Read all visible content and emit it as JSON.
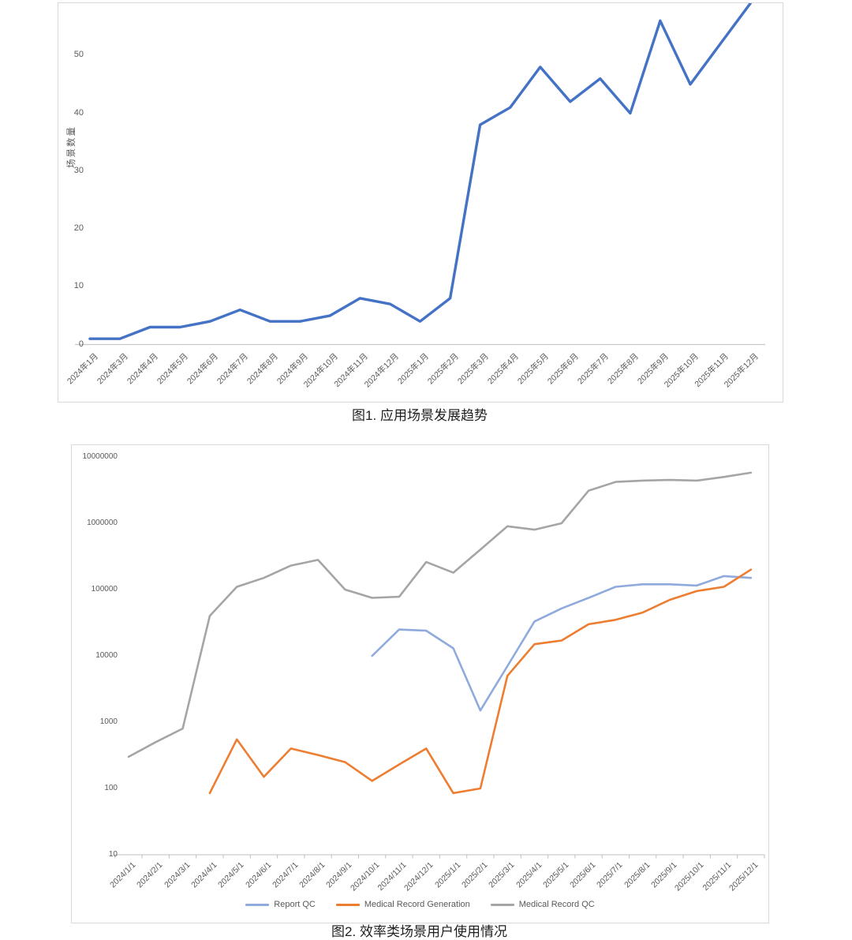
{
  "page": {
    "background": "#ffffff",
    "border_color": "#D9D9D9",
    "axis_text_color": "#595959"
  },
  "chart_data": [
    {
      "type": "line",
      "title": "图1. 应用场景发展趋势",
      "ylabel": "场景数量",
      "xlabel": "",
      "line_color": "#4472C4",
      "grid": false,
      "legend": "none",
      "ylim": [
        0,
        60
      ],
      "yticks": [
        0,
        10,
        20,
        30,
        40,
        50
      ],
      "categories": [
        "2024年1月",
        "2024年3月",
        "2024年4月",
        "2024年5月",
        "2024年6月",
        "2024年7月",
        "2024年8月",
        "2024年9月",
        "2024年10月",
        "2024年11月",
        "2024年12月",
        "2025年1月",
        "2025年2月",
        "2025年3月",
        "2025年4月",
        "2025年5月",
        "2025年6月",
        "2025年7月",
        "2025年8月",
        "2025年9月",
        "2025年10月",
        "2025年11月",
        "2025年12月"
      ],
      "values": [
        1,
        1,
        3,
        3,
        4,
        6,
        4,
        4,
        5,
        8,
        7,
        4,
        8,
        38,
        41,
        48,
        42,
        46,
        40,
        56,
        45,
        52,
        59
      ]
    },
    {
      "type": "line",
      "title": "图2. 效率类场景用户使用情况",
      "xlabel": "",
      "ylabel": "",
      "y_scale": "log",
      "grid": false,
      "legend_position": "bottom",
      "ylim": [
        10,
        10000000
      ],
      "yticks": [
        10,
        100,
        1000,
        10000,
        100000,
        1000000,
        10000000
      ],
      "categories": [
        "2024/1/1",
        "2024/2/1",
        "2024/3/1",
        "2024/4/1",
        "2024/5/1",
        "2024/6/1",
        "2024/7/1",
        "2024/8/1",
        "2024/9/1",
        "2024/10/1",
        "2024/11/1",
        "2024/12/1",
        "2025/1/1",
        "2025/2/1",
        "2025/3/1",
        "2025/4/1",
        "2025/5/1",
        "2025/6/1",
        "2025/7/1",
        "2025/8/1",
        "2025/9/1",
        "2025/10/1",
        "2025/11/1",
        "2025/12/1"
      ],
      "series": [
        {
          "name": "Report QC",
          "color": "#8FAADC",
          "values": [
            null,
            null,
            null,
            null,
            null,
            null,
            null,
            null,
            null,
            10000,
            25000,
            24000,
            13000,
            1500,
            7000,
            33000,
            52000,
            75000,
            110000,
            120000,
            120000,
            115000,
            160000,
            150000
          ]
        },
        {
          "name": "Medical Record Generation",
          "color": "#ED7D31",
          "values": [
            null,
            null,
            null,
            85,
            550,
            150,
            400,
            320,
            250,
            130,
            230,
            400,
            85,
            100,
            5000,
            15000,
            17000,
            30000,
            35000,
            45000,
            70000,
            95000,
            110000,
            200000
          ]
        },
        {
          "name": "Medical Record QC",
          "color": "#A5A5A5",
          "values": [
            300,
            500,
            800,
            40000,
            110000,
            150000,
            230000,
            280000,
            100000,
            75000,
            78000,
            260000,
            180000,
            400000,
            900000,
            800000,
            1000000,
            3100000,
            4200000,
            4400000,
            4500000,
            4400000,
            5000000,
            5800000
          ]
        }
      ]
    }
  ]
}
